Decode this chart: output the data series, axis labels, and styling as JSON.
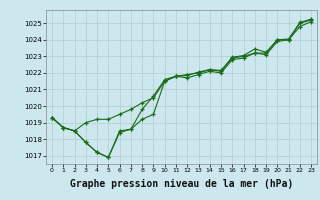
{
  "bg_color": "#cce8ee",
  "grid_color": "#b0cccc",
  "line_color": "#1a6b1a",
  "marker": "+",
  "xlabel": "Graphe pression niveau de la mer (hPa)",
  "xlabel_fontsize": 7,
  "ylim": [
    1016.5,
    1025.8
  ],
  "xlim": [
    -0.5,
    23.5
  ],
  "yticks": [
    1017,
    1018,
    1019,
    1020,
    1021,
    1022,
    1023,
    1024,
    1025
  ],
  "xticks": [
    0,
    1,
    2,
    3,
    4,
    5,
    6,
    7,
    8,
    9,
    10,
    11,
    12,
    13,
    14,
    15,
    16,
    17,
    18,
    19,
    20,
    21,
    22,
    23
  ],
  "line1": [
    1019.3,
    1018.7,
    1018.5,
    1017.8,
    1017.2,
    1016.9,
    1018.5,
    1018.6,
    1019.2,
    1019.5,
    1021.5,
    1021.8,
    1021.7,
    1021.9,
    1022.1,
    1022.0,
    1022.8,
    1022.9,
    1023.2,
    1023.1,
    1023.9,
    1024.0,
    1024.8,
    1025.1
  ],
  "line2": [
    1019.3,
    1018.7,
    1018.5,
    1019.0,
    1019.2,
    1019.2,
    1019.5,
    1019.8,
    1020.2,
    1020.5,
    1021.5,
    1021.8,
    1021.9,
    1022.0,
    1022.2,
    1022.1,
    1022.9,
    1023.0,
    1023.2,
    1023.2,
    1024.0,
    1024.0,
    1025.0,
    1025.2
  ],
  "line3": [
    1019.3,
    1018.7,
    1018.5,
    1017.8,
    1017.2,
    1016.9,
    1018.4,
    1018.6,
    1019.8,
    1020.6,
    1021.6,
    1021.8,
    1021.85,
    1022.05,
    1022.2,
    1022.15,
    1022.95,
    1023.05,
    1023.45,
    1023.25,
    1024.0,
    1024.05,
    1025.05,
    1025.25
  ]
}
